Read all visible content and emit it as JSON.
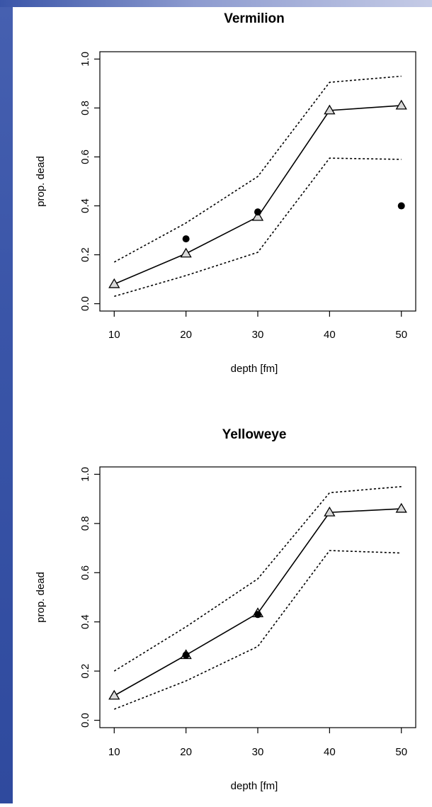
{
  "chart_data": [
    {
      "type": "line",
      "title": "Vermilion",
      "xlabel": "depth [fm]",
      "ylabel": "prop. dead",
      "x_ticks": [
        "10",
        "20",
        "30",
        "40",
        "50"
      ],
      "y_ticks": [
        "0.0",
        "0.2",
        "0.4",
        "0.6",
        "0.8",
        "1.0"
      ],
      "xlim": [
        8,
        52
      ],
      "ylim": [
        -0.03,
        1.03
      ],
      "grid": false,
      "x": [
        10,
        20,
        30,
        40,
        50
      ],
      "series": [
        {
          "style": "solid-line-triangles",
          "values": [
            0.08,
            0.205,
            0.355,
            0.79,
            0.81
          ]
        },
        {
          "style": "dotted",
          "values": [
            0.17,
            0.33,
            0.52,
            0.905,
            0.93
          ]
        },
        {
          "style": "dotted",
          "values": [
            0.03,
            0.115,
            0.21,
            0.595,
            0.59
          ]
        },
        {
          "style": "filled-points",
          "values": [
            null,
            0.265,
            0.375,
            null,
            0.4
          ]
        }
      ]
    },
    {
      "type": "line",
      "title": "Yelloweye",
      "xlabel": "depth [fm]",
      "ylabel": "prop. dead",
      "x_ticks": [
        "10",
        "20",
        "30",
        "40",
        "50"
      ],
      "y_ticks": [
        "0.0",
        "0.2",
        "0.4",
        "0.6",
        "0.8",
        "1.0"
      ],
      "xlim": [
        8,
        52
      ],
      "ylim": [
        -0.03,
        1.03
      ],
      "grid": false,
      "x": [
        10,
        20,
        30,
        40,
        50
      ],
      "series": [
        {
          "style": "solid-line-triangles",
          "values": [
            0.1,
            0.265,
            0.435,
            0.845,
            0.86
          ]
        },
        {
          "style": "dotted",
          "values": [
            0.2,
            0.38,
            0.575,
            0.925,
            0.95
          ]
        },
        {
          "style": "dotted",
          "values": [
            0.045,
            0.16,
            0.3,
            0.69,
            0.68
          ]
        },
        {
          "style": "filled-points",
          "values": [
            null,
            0.265,
            0.43,
            null,
            null
          ]
        }
      ]
    }
  ]
}
